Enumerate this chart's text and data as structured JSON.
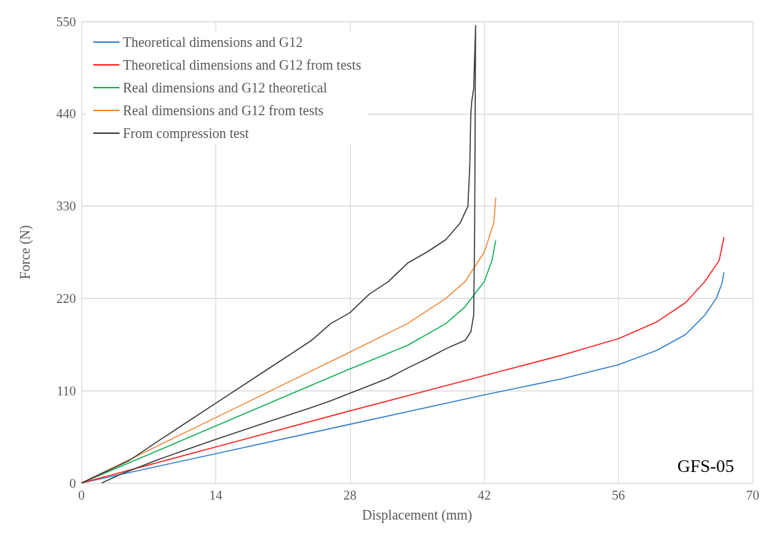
{
  "chart_data": {
    "type": "line",
    "xlabel": "Displacement (mm)",
    "ylabel": "Force (N)",
    "xlim": [
      0,
      70
    ],
    "xticks": [
      0,
      14,
      28,
      42,
      56,
      70
    ],
    "ylim": [
      0,
      550
    ],
    "yticks": [
      0,
      110,
      220,
      330,
      440,
      550
    ],
    "grid": true,
    "legend": "top left",
    "marker": "none",
    "line_style": "solid",
    "annotations": [
      "GFS-05"
    ],
    "series": [
      {
        "name": "Theoretical dimensions and G12",
        "color": "#2f7fd0",
        "x": [
          0,
          14,
          28,
          42,
          50,
          56,
          60,
          63,
          65,
          66.2,
          66.8,
          67
        ],
        "values": [
          0,
          35,
          70,
          105,
          124,
          141,
          158,
          177,
          200,
          220,
          238,
          251
        ]
      },
      {
        "name": "Theoretical dimensions and G12 from tests",
        "color": "#ff2020",
        "x": [
          0,
          14,
          28,
          42,
          50,
          56,
          60,
          63,
          65,
          66.5,
          67
        ],
        "values": [
          0,
          43,
          86,
          128,
          152,
          172,
          192,
          215,
          240,
          265,
          293
        ]
      },
      {
        "name": "Real dimensions and G12 theoretical",
        "color": "#10b050",
        "x": [
          0,
          14,
          28,
          34,
          38,
          40,
          42,
          42.8,
          43.2
        ],
        "values": [
          0,
          68,
          136,
          164,
          190,
          210,
          240,
          265,
          289
        ]
      },
      {
        "name": "Real dimensions and G12 from tests",
        "color": "#f08a3a",
        "x": [
          0,
          14,
          28,
          34,
          38,
          40,
          42,
          43,
          43.2
        ],
        "values": [
          0,
          78,
          156,
          190,
          220,
          240,
          275,
          310,
          340
        ]
      },
      {
        "name": "From compression test",
        "color": "#3a3a3a",
        "x": [
          0,
          5,
          8,
          14,
          20,
          24,
          26,
          28,
          30,
          32,
          34,
          36,
          38,
          39.5,
          40.3,
          40.5,
          40.6,
          40.7,
          40.9,
          41.1,
          41,
          40.9,
          40.6,
          40,
          39,
          38,
          36,
          34,
          32,
          30,
          28,
          26,
          24,
          20,
          14,
          8,
          4,
          2.1
        ],
        "values": [
          0,
          27,
          50,
          95,
          140,
          170,
          190,
          203,
          225,
          240,
          262,
          275,
          290,
          310,
          330,
          380,
          440,
          455,
          470,
          545,
          300,
          200,
          180,
          170,
          165,
          160,
          148,
          137,
          125,
          116,
          107,
          98,
          90,
          75,
          52,
          28,
          10,
          0
        ]
      }
    ]
  }
}
